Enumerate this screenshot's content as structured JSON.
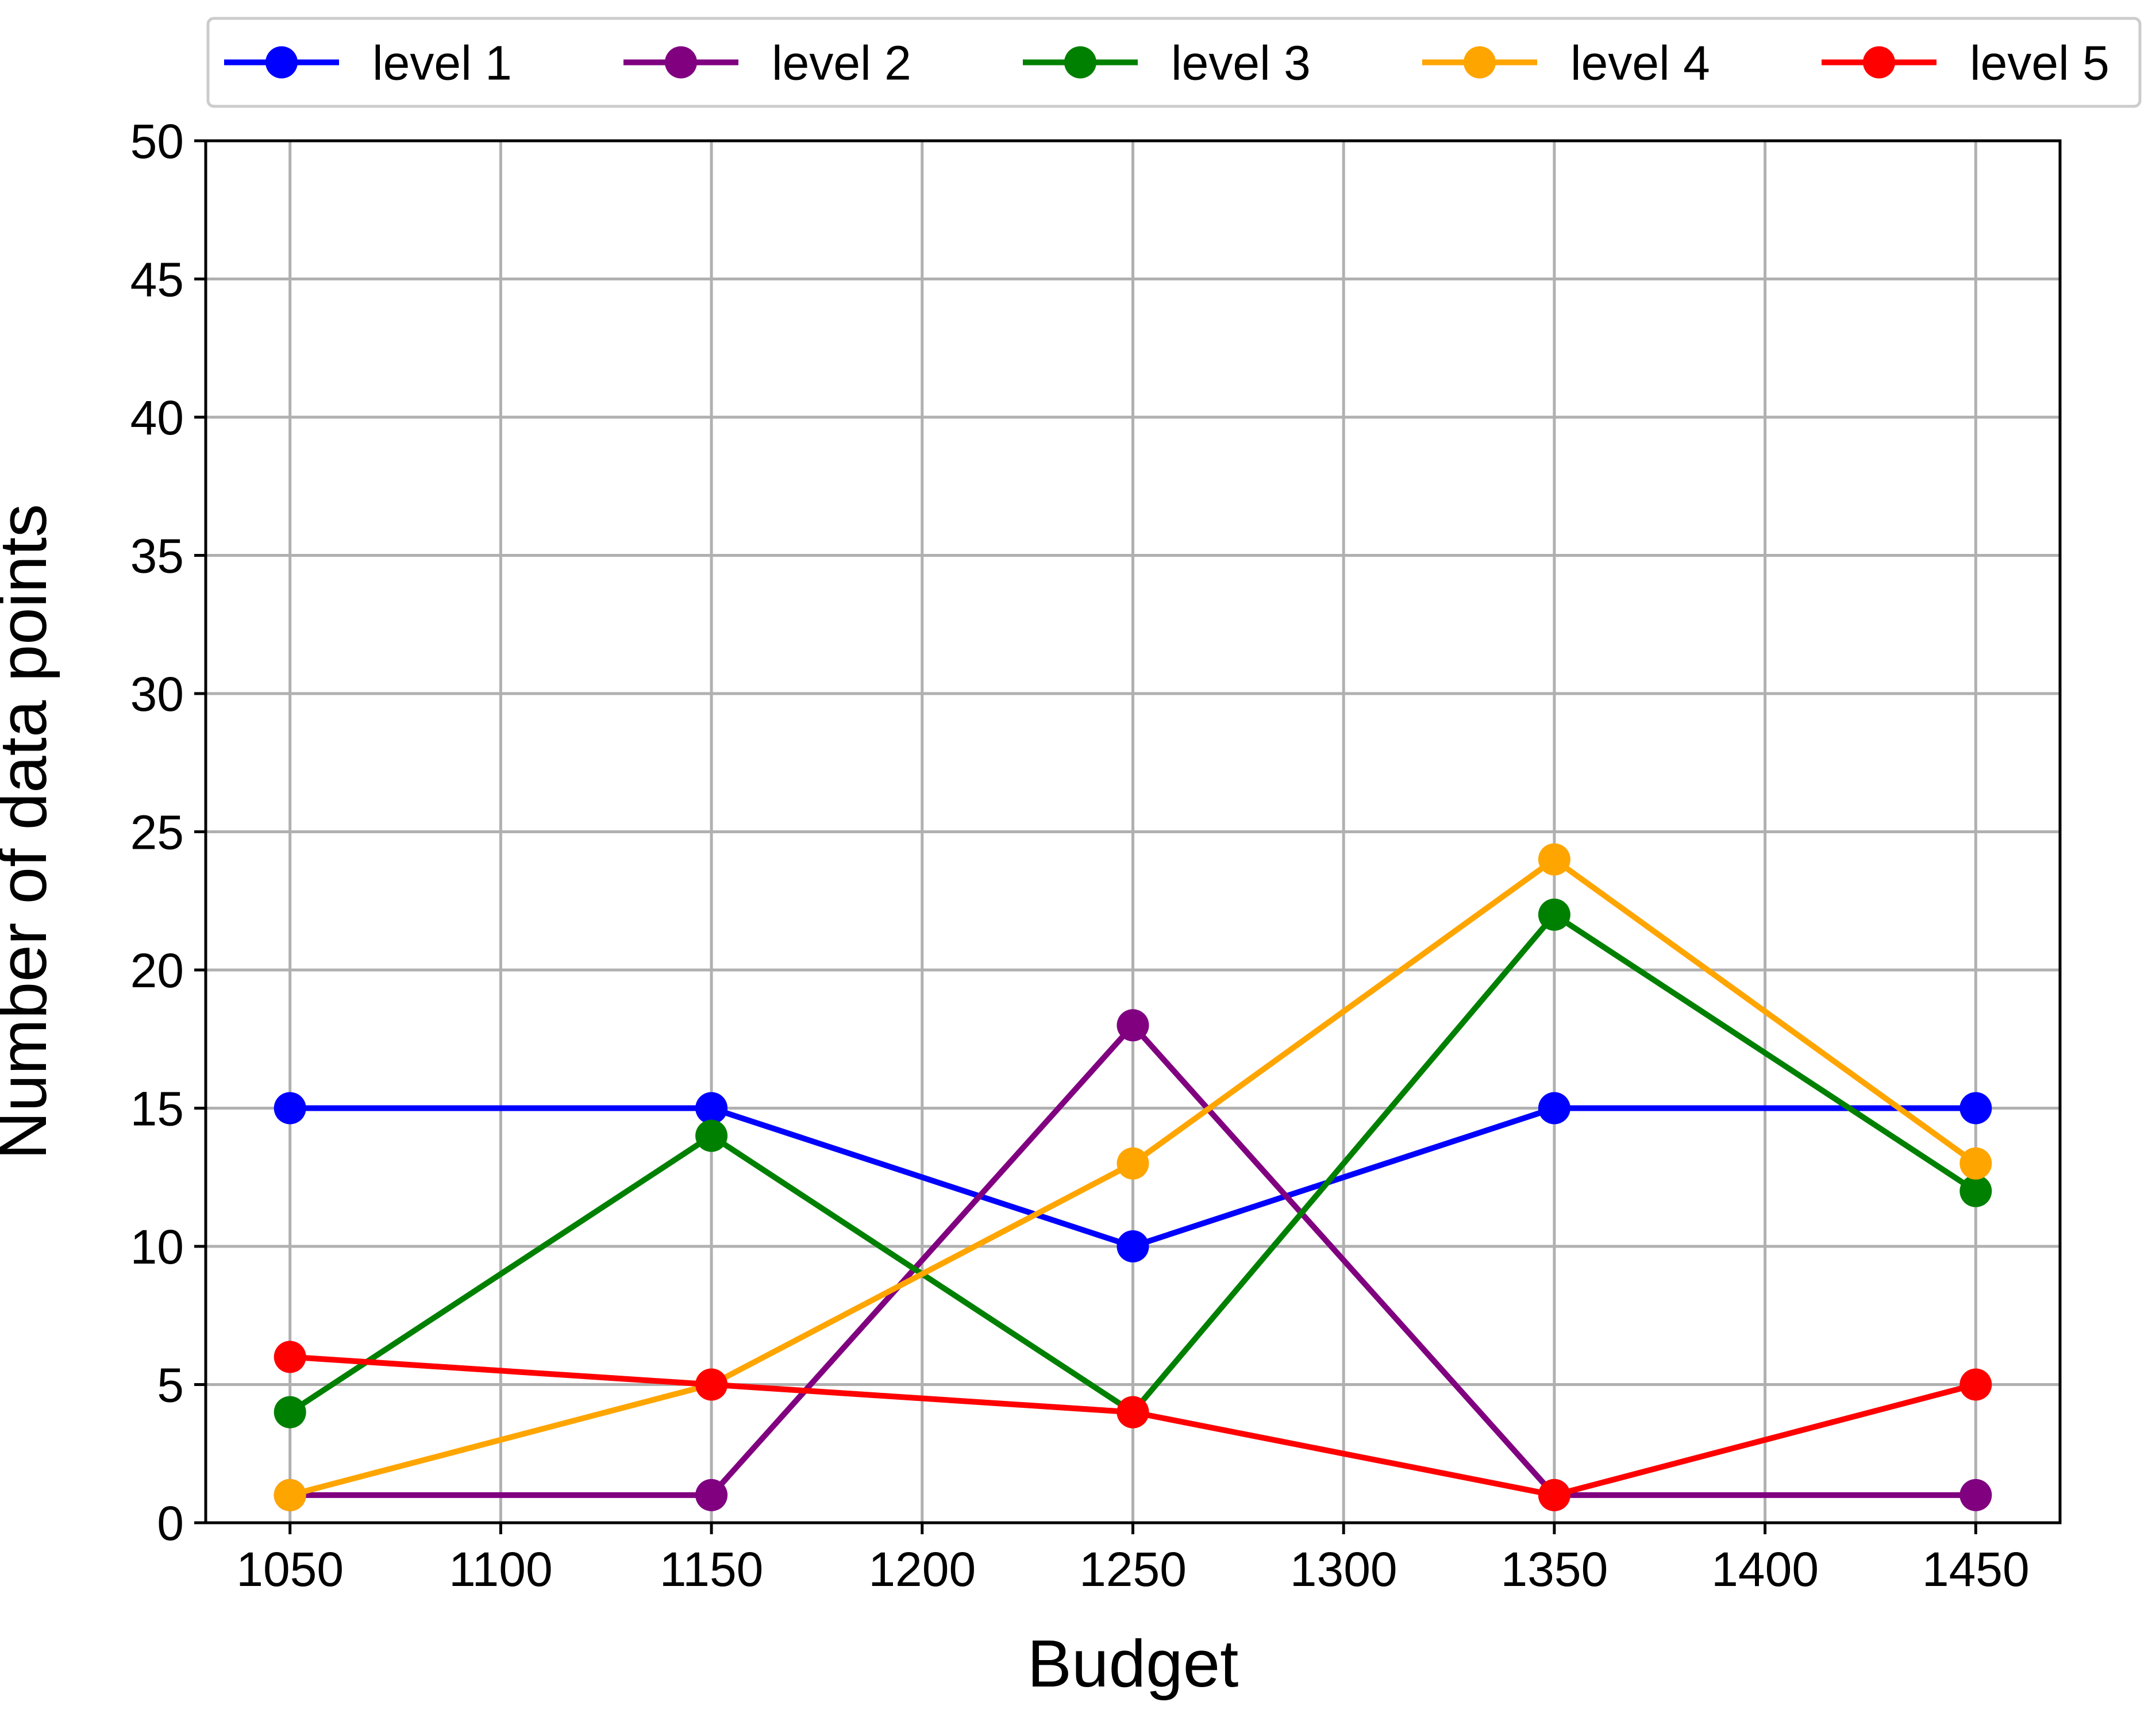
{
  "chart_data": {
    "type": "line",
    "title": "",
    "xlabel": "Budget",
    "ylabel": "Number of data points",
    "x": [
      1050,
      1150,
      1250,
      1350,
      1450
    ],
    "xlim": [
      1030,
      1470
    ],
    "ylim": [
      0,
      50
    ],
    "x_ticks": [
      1050,
      1100,
      1150,
      1200,
      1250,
      1300,
      1350,
      1400,
      1450
    ],
    "y_ticks": [
      0,
      5,
      10,
      15,
      20,
      25,
      30,
      35,
      40,
      45,
      50
    ],
    "grid": true,
    "legend_position": "top",
    "series": [
      {
        "name": "level 1",
        "color": "#0000ff",
        "values": [
          15,
          15,
          10,
          15,
          15
        ]
      },
      {
        "name": "level 2",
        "color": "#800080",
        "values": [
          1,
          1,
          18,
          1,
          1
        ]
      },
      {
        "name": "level 3",
        "color": "#008000",
        "values": [
          4,
          14,
          4,
          22,
          12
        ]
      },
      {
        "name": "level 4",
        "color": "#ffa500",
        "values": [
          1,
          5,
          13,
          24,
          13
        ]
      },
      {
        "name": "level 5",
        "color": "#ff0000",
        "values": [
          6,
          5,
          4,
          1,
          5
        ]
      }
    ]
  }
}
